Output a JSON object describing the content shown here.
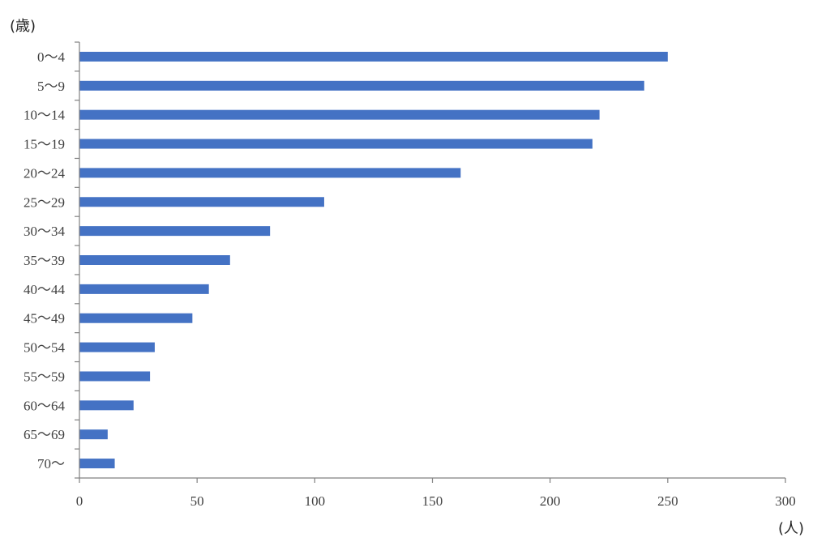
{
  "chart_data": {
    "type": "bar",
    "orientation": "horizontal",
    "title": "",
    "xlabel": "(人)",
    "ylabel": "(歳)",
    "categories": [
      "0～4",
      "5～9",
      "10～14",
      "15～19",
      "20～24",
      "25～29",
      "30～34",
      "35～39",
      "40～44",
      "45～49",
      "50～54",
      "55～59",
      "60～64",
      "65～69",
      "70～"
    ],
    "values": [
      250,
      240,
      221,
      218,
      162,
      104,
      81,
      64,
      55,
      48,
      32,
      30,
      23,
      12,
      15
    ],
    "xlim": [
      0,
      300
    ],
    "xticks": [
      "0",
      "50",
      "100",
      "150",
      "200",
      "250",
      "300"
    ],
    "grid": false,
    "legend": "none",
    "bar_color": "#4472c4",
    "axis_color": "#808080"
  }
}
